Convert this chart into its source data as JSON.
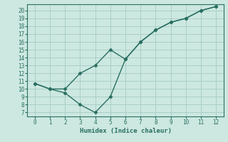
{
  "line1_x": [
    0,
    1,
    2,
    3,
    4,
    5,
    6,
    7,
    8,
    9,
    10,
    11,
    12
  ],
  "line1_y": [
    10.7,
    10.0,
    10.0,
    12.0,
    13.0,
    15.0,
    13.8,
    16.0,
    17.5,
    18.5,
    19.0,
    20.0,
    20.5
  ],
  "line2_x": [
    0,
    1,
    2,
    3,
    4,
    5,
    6,
    7,
    8,
    9,
    10,
    11,
    12
  ],
  "line2_y": [
    10.7,
    10.0,
    9.5,
    8.0,
    7.0,
    9.0,
    13.8,
    16.0,
    17.5,
    18.5,
    19.0,
    20.0,
    20.5
  ],
  "line_color": "#2a6e62",
  "bg_color": "#cce8e0",
  "grid_color": "#aacfc7",
  "xlabel": "Humidex (Indice chaleur)",
  "xlim": [
    -0.5,
    12.5
  ],
  "ylim": [
    6.5,
    20.8
  ],
  "xticks": [
    0,
    1,
    2,
    3,
    4,
    5,
    6,
    7,
    8,
    9,
    10,
    11,
    12
  ],
  "yticks": [
    7,
    8,
    9,
    10,
    11,
    12,
    13,
    14,
    15,
    16,
    17,
    18,
    19,
    20
  ],
  "marker": "D",
  "marker_size": 2.5,
  "line_width": 1.0
}
